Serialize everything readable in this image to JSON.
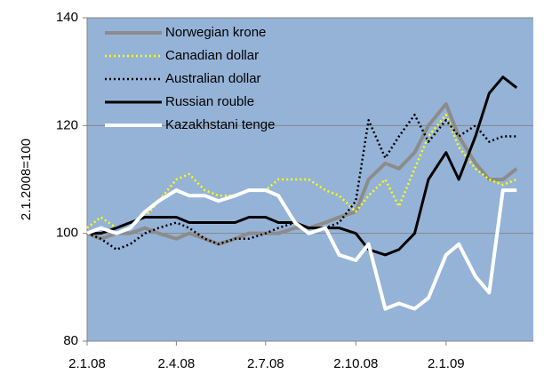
{
  "chart_data": {
    "type": "line",
    "y_label": "2.1.2008=100",
    "x": [
      "2.1.08",
      "16.1.08",
      "1.2.08",
      "15.2.08",
      "1.3.08",
      "15.3.08",
      "2.4.08",
      "15.4.08",
      "1.5.08",
      "15.5.08",
      "1.6.08",
      "15.6.08",
      "2.7.08",
      "15.7.08",
      "1.8.08",
      "15.8.08",
      "1.9.08",
      "15.9.08",
      "2.10.08",
      "15.10.08",
      "1.11.08",
      "15.11.08",
      "1.12.08",
      "15.12.08",
      "2.1.09",
      "15.1.09",
      "1.2.09",
      "15.2.09",
      "1.3.09",
      "15.3.09"
    ],
    "series": [
      {
        "name": "Norwegian krone",
        "color": "#8c8c8c",
        "width": 4,
        "style": "solid",
        "values": [
          100,
          99,
          100,
          100,
          101,
          100,
          99,
          100,
          99,
          98,
          99,
          100,
          100,
          100,
          101,
          101,
          102,
          103,
          104,
          110,
          113,
          112,
          115,
          120,
          124,
          118,
          113,
          110,
          110,
          112
        ]
      },
      {
        "name": "Canadian dollar",
        "color": "#ffff00",
        "width": 2.5,
        "style": "dotted",
        "values": [
          101,
          103,
          101,
          102,
          103,
          106,
          110,
          111,
          108,
          107,
          107,
          108,
          108,
          110,
          110,
          110,
          108,
          107,
          104,
          107,
          110,
          105,
          112,
          118,
          122,
          116,
          112,
          110,
          109,
          110
        ]
      },
      {
        "name": "Australian dollar",
        "color": "#000000",
        "width": 2.5,
        "style": "dotted",
        "values": [
          100,
          99,
          97,
          98,
          100,
          101,
          102,
          101,
          99,
          98,
          99,
          99,
          100,
          101,
          102,
          101,
          101,
          102,
          106,
          121,
          114,
          118,
          122,
          117,
          121,
          118,
          120,
          117,
          118,
          118
        ]
      },
      {
        "name": "Russian rouble",
        "color": "#000000",
        "width": 3,
        "style": "solid",
        "values": [
          100,
          100,
          101,
          102,
          103,
          103,
          103,
          102,
          102,
          102,
          102,
          103,
          103,
          102,
          102,
          101,
          101,
          101,
          100,
          97,
          96,
          97,
          100,
          110,
          115,
          110,
          118,
          126,
          129,
          127
        ]
      },
      {
        "name": "Kazakhstani tenge",
        "color": "#ffffff",
        "width": 4,
        "style": "solid",
        "values": [
          100,
          101,
          100,
          101,
          104,
          106,
          108,
          107,
          107,
          106,
          107,
          108,
          108,
          107,
          102,
          100,
          101,
          96,
          95,
          98,
          86,
          87,
          86,
          88,
          96,
          98,
          92,
          89,
          108,
          108
        ]
      }
    ],
    "xlim": [
      "2.1.08",
      "1.4.09"
    ],
    "xticks": [
      "2.1.08",
      "2.4.08",
      "2.7.08",
      "2.10.08",
      "2.1.09"
    ],
    "ylim": [
      80,
      140
    ],
    "yticks": [
      80,
      100,
      120,
      140
    ],
    "grid": true,
    "plot_background": "#95b3d7",
    "legend": "upper left"
  }
}
